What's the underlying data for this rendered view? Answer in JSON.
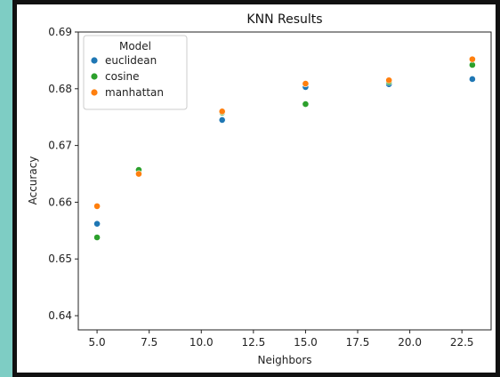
{
  "chart_data": {
    "type": "scatter",
    "title": "KNN Results",
    "xlabel": "Neighbors",
    "ylabel": "Accuracy",
    "xlim": [
      4.1,
      23.9
    ],
    "ylim": [
      0.6375,
      0.69
    ],
    "xticks": [
      5.0,
      7.5,
      10.0,
      12.5,
      15.0,
      17.5,
      20.0,
      22.5
    ],
    "xtick_labels": [
      "5.0",
      "7.5",
      "10.0",
      "12.5",
      "15.0",
      "17.5",
      "20.0",
      "22.5"
    ],
    "yticks": [
      0.64,
      0.65,
      0.66,
      0.67,
      0.68,
      0.69
    ],
    "ytick_labels": [
      "0.64",
      "0.65",
      "0.66",
      "0.67",
      "0.68",
      "0.69"
    ],
    "grid": false,
    "legend": {
      "title": "Model",
      "placement": "top-left"
    },
    "series": [
      {
        "name": "euclidean",
        "color": "#1f77b4",
        "points": [
          [
            5,
            0.6562
          ],
          [
            7,
            0.6656
          ],
          [
            11,
            0.6745
          ],
          [
            15,
            0.6803
          ],
          [
            19,
            0.6808
          ],
          [
            23,
            0.6817
          ]
        ]
      },
      {
        "name": "cosine",
        "color": "#2ca02c",
        "points": [
          [
            5,
            0.6538
          ],
          [
            7,
            0.6657
          ],
          [
            11,
            0.6758
          ],
          [
            15,
            0.6773
          ],
          [
            19,
            0.6812
          ],
          [
            23,
            0.6842
          ]
        ]
      },
      {
        "name": "manhattan",
        "color": "#ff7f0e",
        "points": [
          [
            5,
            0.6593
          ],
          [
            7,
            0.665
          ],
          [
            11,
            0.676
          ],
          [
            15,
            0.6809
          ],
          [
            19,
            0.6815
          ],
          [
            23,
            0.6852
          ]
        ]
      }
    ]
  }
}
